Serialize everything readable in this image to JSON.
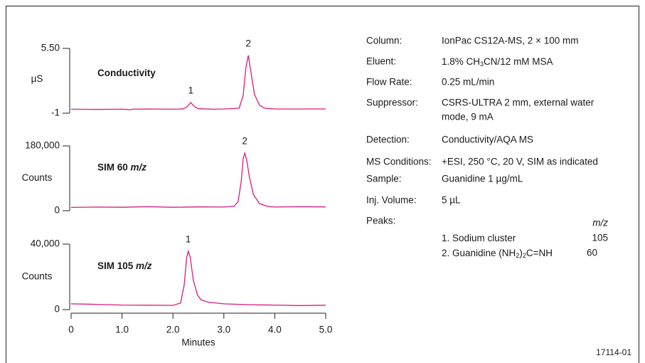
{
  "chart_data": [
    {
      "type": "line",
      "label": "Conductivity",
      "ylabel": "µS",
      "color": "#d81b7d",
      "xlim": [
        0,
        5
      ],
      "ylim": [
        -1,
        5.5
      ],
      "yticks": [
        {
          "value": 5.5,
          "label": "5.50"
        },
        -1
      ],
      "annotations": [
        {
          "text": "1",
          "x": 2.35
        },
        {
          "text": "2",
          "x": 3.48
        }
      ],
      "x": [
        0,
        0.5,
        1.0,
        1.1,
        1.15,
        1.2,
        1.5,
        2.0,
        2.2,
        2.28,
        2.35,
        2.42,
        2.5,
        2.8,
        3.0,
        3.3,
        3.38,
        3.43,
        3.48,
        3.53,
        3.6,
        3.7,
        3.8,
        4.0,
        4.5,
        5.0
      ],
      "values": [
        -0.6,
        -0.62,
        -0.6,
        -0.62,
        -0.68,
        -0.6,
        -0.58,
        -0.6,
        -0.58,
        -0.35,
        0.07,
        -0.35,
        -0.55,
        -0.6,
        -0.58,
        -0.5,
        0.8,
        3.5,
        4.79,
        3.2,
        0.9,
        -0.2,
        -0.5,
        -0.58,
        -0.58,
        -0.57
      ]
    },
    {
      "type": "line",
      "label": "SIM 60",
      "label_unit": "m/z",
      "ylabel": "Counts",
      "color": "#d81b7d",
      "xlim": [
        0,
        5
      ],
      "ylim": [
        0,
        180000
      ],
      "yticks": [
        {
          "value": 180000,
          "label": "180,000"
        },
        0
      ],
      "annotations": [
        {
          "text": "2",
          "x": 3.41
        }
      ],
      "x": [
        0,
        0.5,
        1.0,
        1.5,
        2.0,
        2.5,
        3.0,
        3.2,
        3.28,
        3.34,
        3.38,
        3.41,
        3.45,
        3.5,
        3.58,
        3.7,
        3.85,
        4.0,
        4.5,
        5.0
      ],
      "values": [
        9000,
        10000,
        9500,
        11000,
        9500,
        10500,
        10000,
        12000,
        25000,
        80000,
        145000,
        160000,
        140000,
        95000,
        45000,
        20000,
        12000,
        10000,
        11000,
        10500
      ]
    },
    {
      "type": "line",
      "label": "SIM 105",
      "label_unit": "m/z",
      "ylabel": "Counts",
      "color": "#d81b7d",
      "xlim": [
        0,
        5
      ],
      "ylim": [
        0,
        40000
      ],
      "yticks": [
        {
          "value": 40000,
          "label": "40,000"
        },
        0
      ],
      "xlabel": "Minutes",
      "xticks": [
        0,
        {
          "value": 1,
          "label": "1.0"
        },
        {
          "value": 2,
          "label": "2.0"
        },
        {
          "value": 3,
          "label": "3.0"
        },
        {
          "value": 4,
          "label": "4.0"
        },
        {
          "value": 5,
          "label": "5.0"
        }
      ],
      "annotations": [
        {
          "text": "1",
          "x": 2.3
        }
      ],
      "x": [
        0,
        0.5,
        1.0,
        1.5,
        2.0,
        2.15,
        2.22,
        2.27,
        2.3,
        2.34,
        2.4,
        2.48,
        2.55,
        2.7,
        3.0,
        3.5,
        4.0,
        4.5,
        5.0
      ],
      "values": [
        3500,
        3200,
        2800,
        2700,
        2600,
        4000,
        15000,
        32000,
        35700,
        32000,
        18000,
        9000,
        6000,
        4500,
        3500,
        3000,
        2800,
        2500,
        2700
      ]
    }
  ],
  "info": {
    "rows": [
      {
        "label": "Column:",
        "value": [
          "IonPac CS12A-MS, 2 × 100 mm"
        ]
      },
      {
        "label": "Eluent:",
        "value": [
          [
            "1.8% CH",
            "3",
            "CN/12 mM MSA"
          ]
        ]
      },
      {
        "label": "Flow Rate:",
        "value": [
          "0.25 mL/min"
        ]
      },
      {
        "label": "Suppressor:",
        "value": [
          "CSRS-ULTRA 2 mm, external water",
          "mode, 9 mA"
        ]
      },
      {
        "label": "Detection:",
        "value": [
          "Conductivity/AQA MS"
        ]
      },
      {
        "label": "MS Conditions:",
        "value": [
          "+ESI, 250 °C, 20 V, SIM as indicated"
        ]
      },
      {
        "label": "Sample:",
        "value": [
          "Guanidine 1 µg/mL"
        ]
      },
      {
        "label": "Inj. Volume:",
        "value": [
          "5 µL"
        ]
      },
      {
        "label": "Peaks:",
        "value": []
      }
    ],
    "peaks": {
      "header": "m/z",
      "items": [
        {
          "name": [
            "1. Sodium cluster"
          ],
          "mz": "105"
        },
        {
          "name": [
            "2. Guanidine (NH",
            "2",
            ")",
            "2",
            "C=NH"
          ],
          "mz": "60"
        }
      ]
    }
  },
  "figure_id": "17114-01"
}
